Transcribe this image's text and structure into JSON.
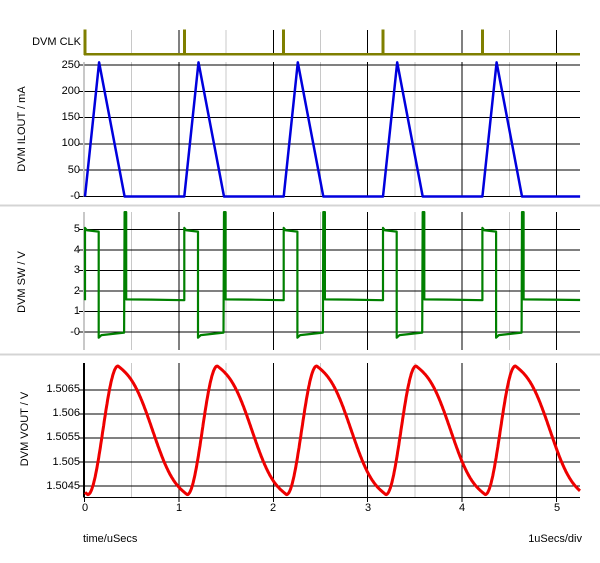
{
  "chart_data": {
    "type": "line",
    "title": "",
    "xlabel": "time/uSecs",
    "scale_note": "1uSecs/div",
    "x_range": [
      0,
      5.25
    ],
    "x_ticks": [
      0,
      1,
      2,
      3,
      4,
      5
    ],
    "x_tick_labels": [
      "0",
      "1",
      "2",
      "3",
      "4",
      "5"
    ],
    "x_minor_step": 0.5,
    "grid": "on",
    "switching_period_us": 1.0525,
    "panels": [
      {
        "id": "clk",
        "name": "DVM CLK",
        "color": "#7F7F00",
        "waveform": "clock_pulses",
        "pulse_times_us": [
          0.005,
          1.0575,
          2.11,
          3.1625,
          4.215
        ],
        "pulse_width_us": 0.03,
        "levels": {
          "low": 0,
          "high": 1
        }
      },
      {
        "id": "ilout",
        "name": "DVM ILOUT / mA",
        "color": "#0000DD",
        "waveform": "dcm_inductor_triangles",
        "y_tick_labels": [
          "250",
          "200",
          "150",
          "100",
          "50",
          "-0"
        ],
        "y_tick_values": [
          250,
          200,
          150,
          100,
          50,
          0
        ],
        "cycle_start_times_us": [
          0.005,
          1.0575,
          2.11,
          3.1625,
          4.215
        ],
        "rise_time_us": 0.15,
        "zero_cross_time_us": 0.42,
        "peak_mA": 255,
        "base_mA": 0
      },
      {
        "id": "sw",
        "name": "DVM SW / V",
        "color": "#008000",
        "waveform": "buck_switch_node",
        "y_tick_labels": [
          "5",
          "4",
          "3",
          "2",
          "1",
          "-0"
        ],
        "y_tick_values": [
          5,
          4,
          3,
          2,
          1,
          0
        ],
        "cycle_start_times_us": [
          0.005,
          1.0575,
          2.11,
          3.1625,
          4.215
        ],
        "on_time_us": 0.145,
        "diode_end_time_us": 0.415,
        "on_level_V": 5.0,
        "on_overshoot_V": 5.08,
        "diode_level_V": -0.15,
        "diode_undershoot_V": -0.28,
        "idle_level_V": 1.58,
        "ring_spike_V": 5.85
      },
      {
        "id": "vout",
        "name": "DVM VOUT / V",
        "color": "#EE0000",
        "waveform": "output_ripple",
        "y_tick_labels": [
          "1.5065",
          "1.506",
          "1.5055",
          "1.505",
          "1.5045"
        ],
        "y_tick_values": [
          1.5065,
          1.506,
          1.5055,
          1.505,
          1.5045
        ],
        "min_V": 1.50432,
        "max_V": 1.507,
        "t_min_offset_us": 0.035,
        "rise_time_us": 0.32
      }
    ],
    "style": {
      "background": "#FFFFFF",
      "major_grid_color": "#000000",
      "minor_grid_color": "#C8C8C8",
      "separator_color": "#D4D4D4",
      "axis_color": "#000000",
      "text_color": "#000000"
    }
  }
}
